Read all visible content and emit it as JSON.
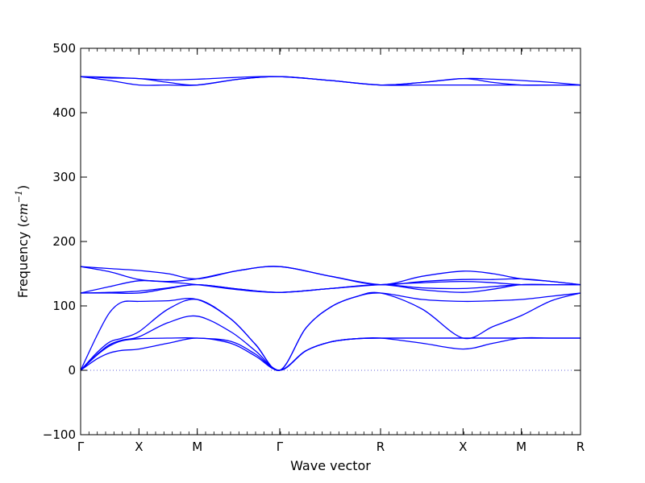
{
  "chart_data": {
    "type": "line",
    "xlabel": "Wave vector",
    "ylabel_text": "Frequency (",
    "ylabel_unit": "cm",
    "ylabel_exp": "−1",
    "ylabel_close": ")",
    "ylim": [
      -100,
      500
    ],
    "yticks": [
      "500",
      "400",
      "300",
      "200",
      "100",
      "0",
      "−100"
    ],
    "ytick_values": [
      500,
      400,
      300,
      200,
      100,
      0,
      -100
    ],
    "x_points": [
      {
        "label": "Γ",
        "x": 0
      },
      {
        "label": "X",
        "x": 0.7
      },
      {
        "label": "M",
        "x": 1.4
      },
      {
        "label": "Γ",
        "x": 2.39
      },
      {
        "label": "R",
        "x": 3.6
      },
      {
        "label": "X",
        "x": 4.59
      },
      {
        "label": "M",
        "x": 5.29
      },
      {
        "label": "R",
        "x": 6.0
      }
    ],
    "xlim": [
      0,
      6.0
    ],
    "zero_line": true,
    "line_color": "#0000ff",
    "zero_line_color": "#3333cc",
    "branches": [
      {
        "x": [
          0,
          0.35,
          0.7,
          1.05,
          1.4,
          1.9,
          2.39,
          3.0,
          3.6,
          4.1,
          4.59,
          4.95,
          5.29,
          5.65,
          6.0
        ],
        "y": [
          456,
          455,
          453,
          451,
          452,
          455,
          456,
          450,
          443,
          447,
          453,
          452,
          450,
          447,
          443
        ]
      },
      {
        "x": [
          0,
          0.35,
          0.7,
          1.05,
          1.4,
          1.9,
          2.39,
          3.0,
          3.6,
          4.1,
          4.59,
          4.95,
          5.29,
          5.65,
          6.0
        ],
        "y": [
          456,
          454,
          453,
          447,
          443,
          452,
          456,
          450,
          443,
          447,
          453,
          447,
          443,
          443,
          443
        ]
      },
      {
        "x": [
          0,
          0.35,
          0.7,
          1.05,
          1.4,
          1.9,
          2.39,
          3.0,
          3.6,
          4.1,
          4.59,
          4.95,
          5.29,
          5.65,
          6.0
        ],
        "y": [
          456,
          450,
          443,
          443,
          443,
          452,
          456,
          450,
          443,
          443,
          443,
          443,
          443,
          443,
          443
        ]
      },
      {
        "x": [
          0,
          0.35,
          0.7,
          1.05,
          1.4,
          1.9,
          2.39,
          3.0,
          3.6,
          4.1,
          4.59,
          4.95,
          5.29,
          5.65,
          6.0
        ],
        "y": [
          161,
          158,
          155,
          150,
          142,
          155,
          161,
          146,
          133,
          146,
          154,
          150,
          142,
          138,
          133
        ]
      },
      {
        "x": [
          0,
          0.35,
          0.7,
          1.05,
          1.4,
          1.9,
          2.39,
          3.0,
          3.6,
          4.1,
          4.59,
          4.95,
          5.29,
          5.65,
          6.0
        ],
        "y": [
          161,
          153,
          141,
          138,
          142,
          155,
          161,
          146,
          133,
          138,
          141,
          141,
          142,
          138,
          133
        ]
      },
      {
        "x": [
          0,
          0.35,
          0.7,
          1.05,
          1.4,
          1.9,
          2.39,
          3.0,
          3.6,
          4.1,
          4.59,
          4.95,
          5.29,
          5.65,
          6.0
        ],
        "y": [
          120,
          130,
          139,
          137,
          133,
          125,
          121,
          127,
          133,
          136,
          138,
          136,
          133,
          133,
          133
        ]
      },
      {
        "x": [
          0,
          0.35,
          0.7,
          1.05,
          1.4,
          1.9,
          2.39,
          3.0,
          3.6,
          4.1,
          4.59,
          4.95,
          5.29,
          5.65,
          6.0
        ],
        "y": [
          120,
          121,
          123,
          128,
          133,
          126,
          121,
          127,
          133,
          125,
          121,
          126,
          133,
          133,
          133
        ]
      },
      {
        "x": [
          0,
          0.35,
          0.7,
          1.05,
          1.4,
          1.9,
          2.39,
          3.0,
          3.6,
          4.1,
          4.59,
          4.95,
          5.29,
          5.65,
          6.0
        ],
        "y": [
          120,
          120,
          120,
          127,
          133,
          126,
          121,
          127,
          133,
          128,
          127,
          130,
          133,
          133,
          133
        ]
      },
      {
        "x": [
          0,
          0.2,
          0.35,
          0.5,
          0.7,
          1.05,
          1.4,
          1.8,
          2.1,
          2.39,
          2.7,
          3.0,
          3.3,
          3.6,
          4.1,
          4.59,
          4.95,
          5.29,
          5.65,
          6.0
        ],
        "y": [
          0,
          55,
          90,
          106,
          107,
          108,
          110,
          80,
          40,
          0,
          65,
          98,
          114,
          120,
          110,
          107,
          108,
          110,
          115,
          120
        ]
      },
      {
        "x": [
          0,
          0.2,
          0.35,
          0.5,
          0.7,
          1.05,
          1.4,
          1.8,
          2.1,
          2.39,
          2.7,
          3.0,
          3.3,
          3.6,
          4.1,
          4.59,
          4.95,
          5.29,
          5.65,
          6.0
        ],
        "y": [
          0,
          28,
          44,
          50,
          60,
          95,
          110,
          80,
          40,
          0,
          65,
          98,
          114,
          120,
          95,
          50,
          68,
          85,
          108,
          120
        ]
      },
      {
        "x": [
          0,
          0.2,
          0.35,
          0.5,
          0.7,
          1.05,
          1.4,
          1.8,
          2.1,
          2.39,
          2.7,
          3.0,
          3.3,
          3.6,
          4.1,
          4.59,
          4.95,
          5.29,
          5.65,
          6.0
        ],
        "y": [
          0,
          25,
          40,
          47,
          52,
          74,
          84,
          60,
          30,
          0,
          30,
          44,
          49,
          50,
          50,
          50,
          50,
          50,
          50,
          50
        ]
      },
      {
        "x": [
          0,
          0.2,
          0.35,
          0.5,
          0.7,
          1.05,
          1.4,
          1.8,
          2.1,
          2.39,
          2.7,
          3.0,
          3.3,
          3.6,
          4.1,
          4.59,
          4.95,
          5.29,
          5.65,
          6.0
        ],
        "y": [
          0,
          24,
          38,
          46,
          49,
          50,
          50,
          45,
          25,
          0,
          30,
          44,
          49,
          50,
          50,
          50,
          50,
          50,
          50,
          50
        ]
      },
      {
        "x": [
          0,
          0.2,
          0.35,
          0.5,
          0.7,
          1.05,
          1.4,
          1.8,
          2.1,
          2.39,
          2.7,
          3.0,
          3.3,
          3.6,
          4.1,
          4.59,
          4.95,
          5.29,
          5.65,
          6.0
        ],
        "y": [
          0,
          18,
          27,
          31,
          33,
          42,
          50,
          42,
          22,
          0,
          30,
          44,
          49,
          50,
          42,
          33,
          42,
          50,
          50,
          50
        ]
      }
    ]
  }
}
